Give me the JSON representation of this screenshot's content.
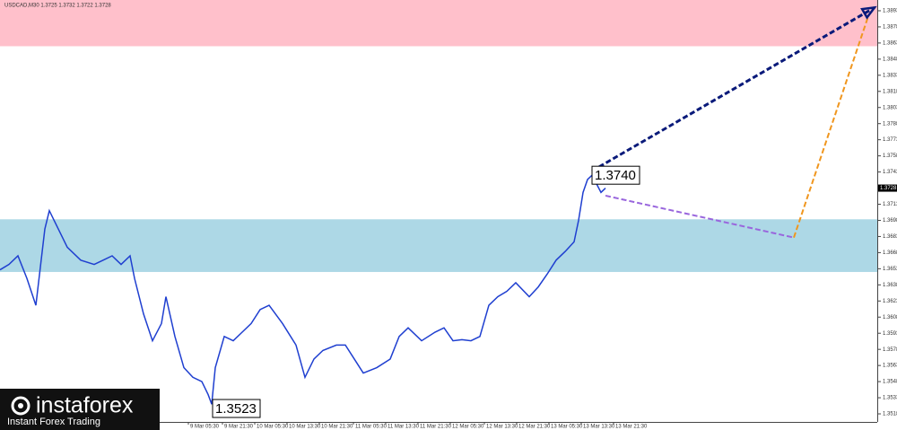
{
  "chart_data": {
    "type": "line",
    "title": "USDCAD,M30 1.3725 1.3732 1.3722 1.3728",
    "xlim": [
      0,
      489
    ],
    "ylim": [
      1.35105,
      1.3903
    ],
    "yticks": [
      1.3518,
      1.3533,
      1.3548,
      1.3563,
      1.3578,
      1.3593,
      1.3608,
      1.3623,
      1.3638,
      1.3653,
      1.3668,
      1.3683,
      1.3698,
      1.3713,
      1.3728,
      1.3743,
      1.3758,
      1.3773,
      1.3788,
      1.3803,
      1.3818,
      1.3833,
      1.3848,
      1.3863,
      1.3878,
      1.3893
    ],
    "xticks": [
      {
        "value": 105,
        "label": "9 Mar 05:30"
      },
      {
        "value": 124,
        "label": "9 Mar 21:30"
      },
      {
        "value": 142,
        "label": "10 Mar 05:30"
      },
      {
        "value": 160,
        "label": "10 Mar 13:30"
      },
      {
        "value": 178,
        "label": "10 Mar 21:30"
      },
      {
        "value": 197,
        "label": "11 Mar 05:30"
      },
      {
        "value": 215,
        "label": "11 Mar 13:30"
      },
      {
        "value": 233,
        "label": "11 Mar 21:30"
      },
      {
        "value": 251,
        "label": "12 Mar 05:30"
      },
      {
        "value": 270,
        "label": "12 Mar 13:30"
      },
      {
        "value": 288,
        "label": "12 Mar 21:30"
      },
      {
        "value": 306,
        "label": "13 Mar 05:30"
      },
      {
        "value": 324,
        "label": "13 Mar 13:30"
      },
      {
        "value": 342,
        "label": "13 Mar 21:30"
      }
    ],
    "zones": [
      {
        "from": 1.386,
        "to": 1.3903,
        "color": "#ffc0cb"
      },
      {
        "from": 1.365,
        "to": 1.3699,
        "color": "#add8e6"
      }
    ],
    "series": [
      {
        "color": "#1f3fd0",
        "x": [
          0,
          5,
          10,
          15,
          20,
          25,
          27.5,
          32.5,
          37.5,
          45,
          52.5,
          57.5,
          62.5,
          67.5,
          72.5,
          75,
          80,
          85,
          90,
          92.5,
          97.5,
          102.5,
          107.5,
          112.5,
          116,
          118,
          120,
          125,
          130,
          135,
          140,
          145,
          150,
          157.5,
          165,
          170,
          175,
          180,
          187.5,
          192.5,
          197.5,
          202.5,
          210,
          217.5,
          222.5,
          227.5,
          235,
          242.5,
          247.5,
          252.5,
          257.5,
          262.5,
          267.5,
          272.5,
          277.5,
          282.5,
          287.5,
          295,
          300,
          305,
          310,
          315,
          320,
          322.5,
          325,
          327.5,
          330,
          332.5,
          335,
          337.5
        ],
        "values": [
          1.3652,
          1.3657,
          1.3665,
          1.3644,
          1.3619,
          1.369,
          1.3707,
          1.369,
          1.3673,
          1.3661,
          1.3657,
          1.3661,
          1.3665,
          1.3657,
          1.3665,
          1.3644,
          1.3611,
          1.3586,
          1.3602,
          1.3627,
          1.359,
          1.3561,
          1.3552,
          1.3548,
          1.3536,
          1.3527,
          1.3561,
          1.359,
          1.3586,
          1.3594,
          1.3602,
          1.3615,
          1.3619,
          1.3602,
          1.3582,
          1.3552,
          1.3569,
          1.3577,
          1.3582,
          1.3582,
          1.3569,
          1.3556,
          1.3561,
          1.3569,
          1.359,
          1.3598,
          1.3586,
          1.3594,
          1.3598,
          1.3586,
          1.3587,
          1.3586,
          1.359,
          1.3619,
          1.3627,
          1.3632,
          1.364,
          1.3627,
          1.3636,
          1.3648,
          1.3661,
          1.3669,
          1.3678,
          1.3698,
          1.3724,
          1.3736,
          1.374,
          1.3732,
          1.3724,
          1.3728
        ]
      }
    ],
    "forecasts": [
      {
        "color": "#0a1a7a",
        "x": [
          330,
          487.5
        ],
        "values": [
          1.3744,
          1.3896
        ]
      },
      {
        "color": "#9966dd",
        "x": [
          337.5,
          442.5
        ],
        "values": [
          1.3721,
          1.3682
        ]
      },
      {
        "color": "#f0961e",
        "x": [
          442.5,
          484
        ],
        "values": [
          1.3682,
          1.3888
        ]
      }
    ],
    "annotations": [
      {
        "x": 330,
        "value": 1.374,
        "label": "1.3740"
      },
      {
        "x": 118.5,
        "value": 1.3523,
        "label": "1.3523"
      }
    ],
    "last_price": 1.3728
  },
  "logo": {
    "name": "instaforex",
    "tagline": "Instant Forex Trading"
  }
}
